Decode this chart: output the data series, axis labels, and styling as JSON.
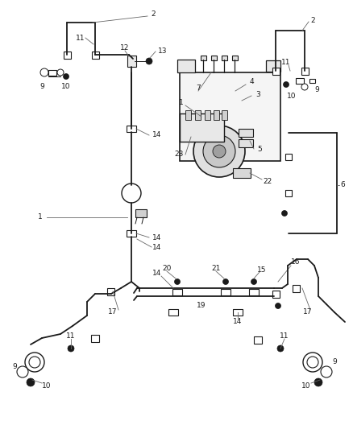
{
  "bg_color": "#ffffff",
  "line_color": "#1a1a1a",
  "label_color": "#1a1a1a",
  "leader_color": "#666666",
  "fig_width": 4.38,
  "fig_height": 5.33,
  "dpi": 100
}
